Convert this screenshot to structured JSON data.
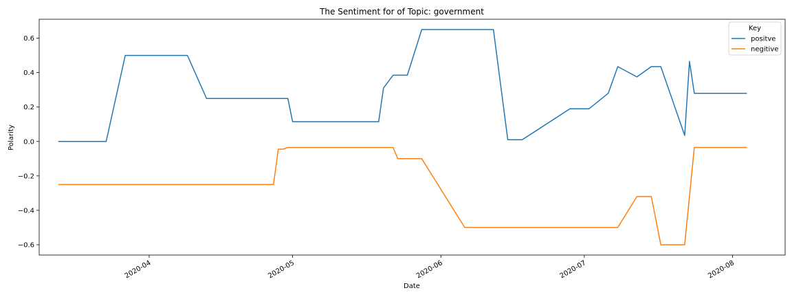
{
  "chart_data": {
    "type": "line",
    "title": "The Sentiment for of Topic: government",
    "xlabel": "Date",
    "ylabel": "Polarity",
    "xlim": [
      "2020-03-09",
      "2020-08-12"
    ],
    "ylim": [
      -0.66,
      0.71
    ],
    "x_ticks": [
      "2020-04-01",
      "2020-05-01",
      "2020-06-01",
      "2020-07-01",
      "2020-08-01"
    ],
    "x_tick_labels": [
      "2020-04",
      "2020-05",
      "2020-06",
      "2020-07",
      "2020-08"
    ],
    "y_ticks": [
      0.6,
      0.4,
      0.2,
      0.0,
      -0.2,
      -0.4,
      -0.6
    ],
    "y_tick_labels": [
      "0.6",
      "0.4",
      "0.2",
      "0.0",
      "−0.2",
      "−0.4",
      "−0.6"
    ],
    "grid": false,
    "legend": {
      "title": "Key",
      "placement": "top-right"
    },
    "series": [
      {
        "name": "positve",
        "color": "#1f77b4",
        "points": [
          [
            "2020-03-13",
            0.0
          ],
          [
            "2020-03-23",
            0.0
          ],
          [
            "2020-03-27",
            0.5
          ],
          [
            "2020-04-09",
            0.5
          ],
          [
            "2020-04-13",
            0.25
          ],
          [
            "2020-04-30",
            0.25
          ],
          [
            "2020-05-01",
            0.115
          ],
          [
            "2020-05-19",
            0.115
          ],
          [
            "2020-05-20",
            0.31
          ],
          [
            "2020-05-22",
            0.385
          ],
          [
            "2020-05-25",
            0.385
          ],
          [
            "2020-05-28",
            0.65
          ],
          [
            "2020-06-12",
            0.65
          ],
          [
            "2020-06-15",
            0.01
          ],
          [
            "2020-06-18",
            0.01
          ],
          [
            "2020-06-28",
            0.19
          ],
          [
            "2020-07-02",
            0.19
          ],
          [
            "2020-07-06",
            0.28
          ],
          [
            "2020-07-08",
            0.435
          ],
          [
            "2020-07-12",
            0.375
          ],
          [
            "2020-07-15",
            0.435
          ],
          [
            "2020-07-17",
            0.435
          ],
          [
            "2020-07-22",
            0.035
          ],
          [
            "2020-07-23",
            0.465
          ],
          [
            "2020-07-24",
            0.28
          ],
          [
            "2020-08-04",
            0.28
          ]
        ]
      },
      {
        "name": "negitive",
        "color": "#ff7f0e",
        "points": [
          [
            "2020-03-13",
            -0.25
          ],
          [
            "2020-04-27",
            -0.25
          ],
          [
            "2020-04-28",
            -0.045
          ],
          [
            "2020-04-29",
            -0.045
          ],
          [
            "2020-04-30",
            -0.035
          ],
          [
            "2020-05-22",
            -0.035
          ],
          [
            "2020-05-23",
            -0.1
          ],
          [
            "2020-05-28",
            -0.1
          ],
          [
            "2020-06-06",
            -0.5
          ],
          [
            "2020-07-08",
            -0.5
          ],
          [
            "2020-07-12",
            -0.32
          ],
          [
            "2020-07-15",
            -0.32
          ],
          [
            "2020-07-17",
            -0.6
          ],
          [
            "2020-07-22",
            -0.6
          ],
          [
            "2020-07-24",
            -0.035
          ],
          [
            "2020-08-04",
            -0.035
          ]
        ]
      }
    ]
  }
}
